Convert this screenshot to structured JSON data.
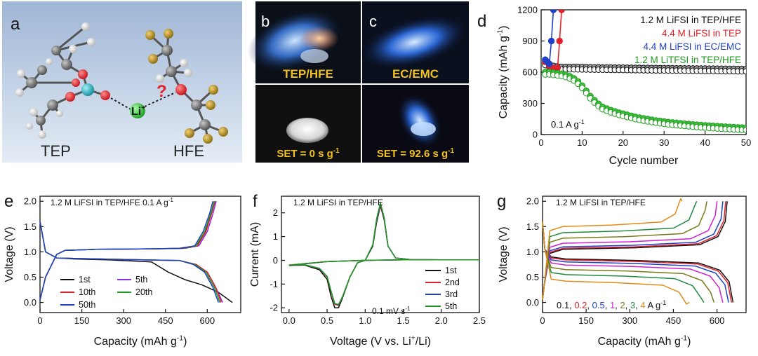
{
  "panels": {
    "a": {
      "letter": "a",
      "mol_left": "TEP",
      "mol_right": "HFE",
      "ion": "Li",
      "ion_sup": "+",
      "question": "?",
      "colors": {
        "bg_top": "#9fb6d6",
        "bg_bottom": "#dfe8f3",
        "carbon": "#6a6a6a",
        "hydrogen": "#e4e4e4",
        "oxygen": "#e0202a",
        "phosphorus": "#1ab2c2",
        "fluorine": "#b08a1e",
        "lithium": "#2fc83a"
      }
    },
    "b": {
      "letter": "b",
      "electrolyte": "TEP/HFE",
      "set_prefix": "SET = ",
      "set_value": "0",
      "set_unit": " s g",
      "set_sup": "-1"
    },
    "c": {
      "letter": "c",
      "electrolyte": "EC/EMC",
      "set_prefix": "SET = ",
      "set_value": "92.6",
      "set_unit": " s g",
      "set_sup": "-1"
    },
    "d": {
      "letter": "d",
      "rate_label": "0.1 A g",
      "rate_sup": "-1"
    },
    "e": {
      "letter": "e",
      "annotation": "1.2 M LiFSI in TEP/HFE 0.1 A g",
      "annotation_sup": "-1"
    },
    "f": {
      "letter": "f",
      "annotation": "1.2 M LiFSI in TEP/HFE",
      "rate_label": "0.1 mV s",
      "rate_sup": "-1"
    },
    "g": {
      "letter": "g",
      "annotation": "1.2 M LiFSI in TEP/HFE",
      "rates_unit": " A g",
      "rates_sup": "-1"
    }
  },
  "chart_data": [
    {
      "id": "d",
      "type": "scatter",
      "xlabel": "Cycle number",
      "ylabel_main": "Capacity (mAh g",
      "ylabel_sup": "-1",
      "ylabel_tail": ")",
      "xlim": [
        0,
        50
      ],
      "ylim": [
        0,
        1200
      ],
      "xticks": [
        0,
        10,
        20,
        30,
        40,
        50
      ],
      "yticks": [
        0,
        300,
        600,
        900,
        1200
      ],
      "legend_position": "top-right",
      "series": [
        {
          "name": "1.2 M LiFSI in TEP/HFE",
          "color": "#111111",
          "x": [
            1,
            2,
            3,
            4,
            5,
            6,
            8,
            10,
            15,
            20,
            25,
            30,
            35,
            40,
            45,
            50
          ],
          "y": [
            690,
            670,
            660,
            655,
            650,
            650,
            650,
            648,
            645,
            643,
            640,
            638,
            636,
            634,
            632,
            630
          ]
        },
        {
          "name": "4.4 M LiFSI in TEP",
          "color": "#e0202a",
          "x": [
            1,
            2,
            3,
            4,
            4.5,
            5
          ],
          "y": [
            700,
            660,
            640,
            640,
            900,
            1200
          ]
        },
        {
          "name": "4.4 M LiFSI in EC/EMC",
          "color": "#1f3fc8",
          "x": [
            1,
            1.5,
            2,
            2.5,
            3
          ],
          "y": [
            720,
            700,
            680,
            900,
            1200
          ]
        },
        {
          "name": "1.2 M LiTFSI in TEP/HFE",
          "color": "#1f9a1f",
          "x": [
            1,
            2,
            3,
            4,
            5,
            6,
            7,
            8,
            9,
            10,
            11,
            12,
            13,
            14,
            15,
            17,
            19,
            21,
            23,
            25,
            28,
            31,
            34,
            37,
            40,
            43,
            46,
            50
          ],
          "y": [
            600,
            600,
            595,
            590,
            585,
            575,
            560,
            540,
            510,
            470,
            420,
            370,
            330,
            295,
            265,
            235,
            210,
            190,
            170,
            155,
            135,
            120,
            108,
            97,
            88,
            80,
            73,
            65
          ]
        }
      ]
    },
    {
      "id": "e",
      "type": "line",
      "xlabel": "Capacity (mAh g",
      "xlabel_sup": "-1",
      "xlabel_tail": ")",
      "ylabel": "Voltage (V)",
      "xlim": [
        0,
        720
      ],
      "ylim": [
        -0.2,
        2.1
      ],
      "xticks": [
        0,
        150,
        300,
        450,
        600
      ],
      "yticks": [
        0.0,
        0.5,
        1.0,
        1.5,
        2.0
      ],
      "legend_position": "bottom-left",
      "series": [
        {
          "name": "1st",
          "color": "#111111",
          "discharge": {
            "x": [
              0,
              20,
              60,
              120,
              250,
              400,
              460,
              520,
              580,
              640,
              690
            ],
            "y": [
              1.6,
              1.0,
              0.88,
              0.86,
              0.84,
              0.8,
              0.6,
              0.45,
              0.35,
              0.2,
              0.0
            ]
          },
          "charge": {
            "x": [
              0,
              20,
              60,
              90,
              200,
              400,
              500,
              560,
              590,
              610,
              625
            ],
            "y": [
              0.05,
              0.5,
              0.95,
              1.03,
              1.05,
              1.06,
              1.07,
              1.12,
              1.35,
              1.7,
              2.0
            ]
          }
        },
        {
          "name": "5th",
          "color": "#8a2be2",
          "discharge": {
            "x": [
              0,
              20,
              60,
              120,
              300,
              500,
              560,
              600,
              630,
              655
            ],
            "y": [
              1.6,
              1.0,
              0.88,
              0.87,
              0.85,
              0.83,
              0.75,
              0.6,
              0.3,
              0.0
            ]
          },
          "charge": {
            "x": [
              0,
              20,
              60,
              90,
              200,
              400,
              520,
              570,
              600,
              620,
              632
            ],
            "y": [
              0.05,
              0.5,
              0.95,
              1.03,
              1.05,
              1.06,
              1.07,
              1.12,
              1.4,
              1.75,
              2.0
            ]
          }
        },
        {
          "name": "10th",
          "color": "#e0202a",
          "discharge": {
            "x": [
              0,
              20,
              60,
              120,
              300,
              500,
              560,
              600,
              630,
              650
            ],
            "y": [
              1.6,
              1.0,
              0.88,
              0.87,
              0.85,
              0.83,
              0.75,
              0.6,
              0.3,
              0.0
            ]
          },
          "charge": {
            "x": [
              0,
              20,
              60,
              90,
              200,
              400,
              520,
              565,
              595,
              615,
              628
            ],
            "y": [
              0.05,
              0.5,
              0.95,
              1.03,
              1.05,
              1.06,
              1.07,
              1.12,
              1.4,
              1.75,
              2.0
            ]
          }
        },
        {
          "name": "20th",
          "color": "#1f9a1f",
          "discharge": {
            "x": [
              0,
              20,
              60,
              120,
              300,
              500,
              555,
              595,
              625,
              645
            ],
            "y": [
              1.6,
              1.0,
              0.88,
              0.87,
              0.85,
              0.83,
              0.75,
              0.6,
              0.3,
              0.0
            ]
          },
          "charge": {
            "x": [
              0,
              20,
              60,
              90,
              200,
              400,
              515,
              560,
              590,
              612,
              625
            ],
            "y": [
              0.05,
              0.5,
              0.95,
              1.03,
              1.05,
              1.06,
              1.07,
              1.12,
              1.4,
              1.75,
              2.0
            ]
          }
        },
        {
          "name": "50th",
          "color": "#1f3fc8",
          "discharge": {
            "x": [
              0,
              20,
              60,
              120,
              300,
              500,
              550,
              590,
              620,
              640
            ],
            "y": [
              1.6,
              1.0,
              0.88,
              0.87,
              0.85,
              0.83,
              0.75,
              0.6,
              0.3,
              0.0
            ]
          },
          "charge": {
            "x": [
              0,
              20,
              60,
              90,
              200,
              400,
              510,
              555,
              585,
              608,
              620
            ],
            "y": [
              0.05,
              0.5,
              0.95,
              1.03,
              1.05,
              1.06,
              1.07,
              1.12,
              1.4,
              1.75,
              2.0
            ]
          }
        }
      ]
    },
    {
      "id": "f",
      "type": "line",
      "xlabel": "Voltage (V vs. Li",
      "xlabel_sup": "+",
      "xlabel_tail": "/Li)",
      "ylabel": "Current (mA)",
      "xlim": [
        -0.1,
        2.5
      ],
      "ylim": [
        -2.2,
        2.7
      ],
      "xticks": [
        0.0,
        0.5,
        1.0,
        1.5,
        2.0,
        2.5
      ],
      "yticks": [
        -2,
        -1,
        0,
        1,
        2
      ],
      "legend_position": "bottom-right",
      "series": [
        {
          "name": "1st",
          "color": "#111111",
          "x": [
            0.0,
            0.2,
            0.4,
            0.5,
            0.55,
            0.6,
            0.65,
            0.7,
            0.8,
            0.9,
            1.0,
            1.1,
            1.15,
            1.2,
            1.25,
            1.3,
            1.4,
            1.6,
            2.0,
            2.5,
            2.0,
            1.5,
            1.0,
            0.5,
            0.0
          ],
          "y": [
            -0.22,
            -0.2,
            -0.4,
            -0.8,
            -1.5,
            -2.0,
            -2.0,
            -1.6,
            -0.7,
            -0.1,
            0.0,
            0.6,
            1.6,
            2.3,
            1.7,
            0.6,
            0.1,
            0.03,
            0.02,
            0.02,
            0.02,
            0.02,
            0.0,
            -0.05,
            -0.22
          ]
        },
        {
          "name": "2nd",
          "color": "#e0202a",
          "x": [
            0.0,
            0.2,
            0.4,
            0.5,
            0.55,
            0.6,
            0.65,
            0.7,
            0.8,
            0.9,
            1.0,
            1.1,
            1.15,
            1.2,
            1.25,
            1.3,
            1.4,
            1.6,
            2.0,
            2.5,
            2.0,
            1.5,
            1.0,
            0.5,
            0.0
          ],
          "y": [
            -0.2,
            -0.18,
            -0.35,
            -0.7,
            -1.3,
            -1.85,
            -1.9,
            -1.55,
            -0.7,
            -0.1,
            0.0,
            0.65,
            1.7,
            2.35,
            1.75,
            0.6,
            0.1,
            0.03,
            0.02,
            0.02,
            0.02,
            0.02,
            0.0,
            -0.05,
            -0.2
          ]
        },
        {
          "name": "3rd",
          "color": "#1f3fc8",
          "x": [
            0.0,
            0.2,
            0.4,
            0.5,
            0.55,
            0.6,
            0.65,
            0.7,
            0.8,
            0.9,
            1.0,
            1.1,
            1.15,
            1.2,
            1.25,
            1.3,
            1.4,
            1.6,
            2.0,
            2.5,
            2.0,
            1.5,
            1.0,
            0.5,
            0.0
          ],
          "y": [
            -0.2,
            -0.18,
            -0.34,
            -0.68,
            -1.28,
            -1.82,
            -1.88,
            -1.55,
            -0.7,
            -0.1,
            0.0,
            0.65,
            1.72,
            2.4,
            1.78,
            0.6,
            0.1,
            0.03,
            0.02,
            0.02,
            0.02,
            0.02,
            0.0,
            -0.05,
            -0.2
          ]
        },
        {
          "name": "5th",
          "color": "#1f9a1f",
          "x": [
            0.0,
            0.2,
            0.4,
            0.5,
            0.55,
            0.6,
            0.65,
            0.7,
            0.8,
            0.9,
            1.0,
            1.1,
            1.15,
            1.2,
            1.25,
            1.3,
            1.4,
            1.6,
            2.0,
            2.5,
            2.0,
            1.5,
            1.0,
            0.5,
            0.0
          ],
          "y": [
            -0.2,
            -0.18,
            -0.34,
            -0.68,
            -1.28,
            -1.82,
            -1.86,
            -1.55,
            -0.7,
            -0.1,
            0.0,
            0.65,
            1.75,
            2.42,
            1.8,
            0.6,
            0.1,
            0.03,
            0.02,
            0.02,
            0.02,
            0.02,
            0.0,
            -0.05,
            -0.2
          ]
        }
      ]
    },
    {
      "id": "g",
      "type": "line",
      "xlabel": "Capacity (mAh g",
      "xlabel_sup": "-1",
      "xlabel_tail": ")",
      "ylabel": "Voltage (V)",
      "xlim": [
        0,
        700
      ],
      "ylim": [
        -0.2,
        2.1
      ],
      "xticks": [
        0,
        150,
        300,
        450,
        600
      ],
      "yticks": [
        0.0,
        0.5,
        1.0,
        1.5,
        2.0
      ],
      "legend_position": "bottom-center",
      "series": [
        {
          "name": "0.1",
          "color": "#111111",
          "dv": 0.86,
          "cv": 1.05,
          "cap_d": 655,
          "cap_c": 635
        },
        {
          "name": "0.2",
          "color": "#e0202a",
          "dv": 0.84,
          "cv": 1.07,
          "cap_d": 650,
          "cap_c": 630
        },
        {
          "name": "0.5",
          "color": "#1f3fc8",
          "dv": 0.8,
          "cv": 1.1,
          "cap_d": 640,
          "cap_c": 620
        },
        {
          "name": "1",
          "color": "#d020d0",
          "dv": 0.74,
          "cv": 1.17,
          "cap_d": 620,
          "cap_c": 600
        },
        {
          "name": "2",
          "color": "#7a7a1a",
          "dv": 0.65,
          "cv": 1.27,
          "cap_d": 590,
          "cap_c": 565
        },
        {
          "name": "3",
          "color": "#1f8a3f",
          "dv": 0.55,
          "cv": 1.38,
          "cap_d": 555,
          "cap_c": 530
        },
        {
          "name": "4",
          "color": "#e08a1a",
          "dv": 0.42,
          "cv": 1.5,
          "cap_d": 505,
          "cap_c": 480
        }
      ]
    }
  ]
}
